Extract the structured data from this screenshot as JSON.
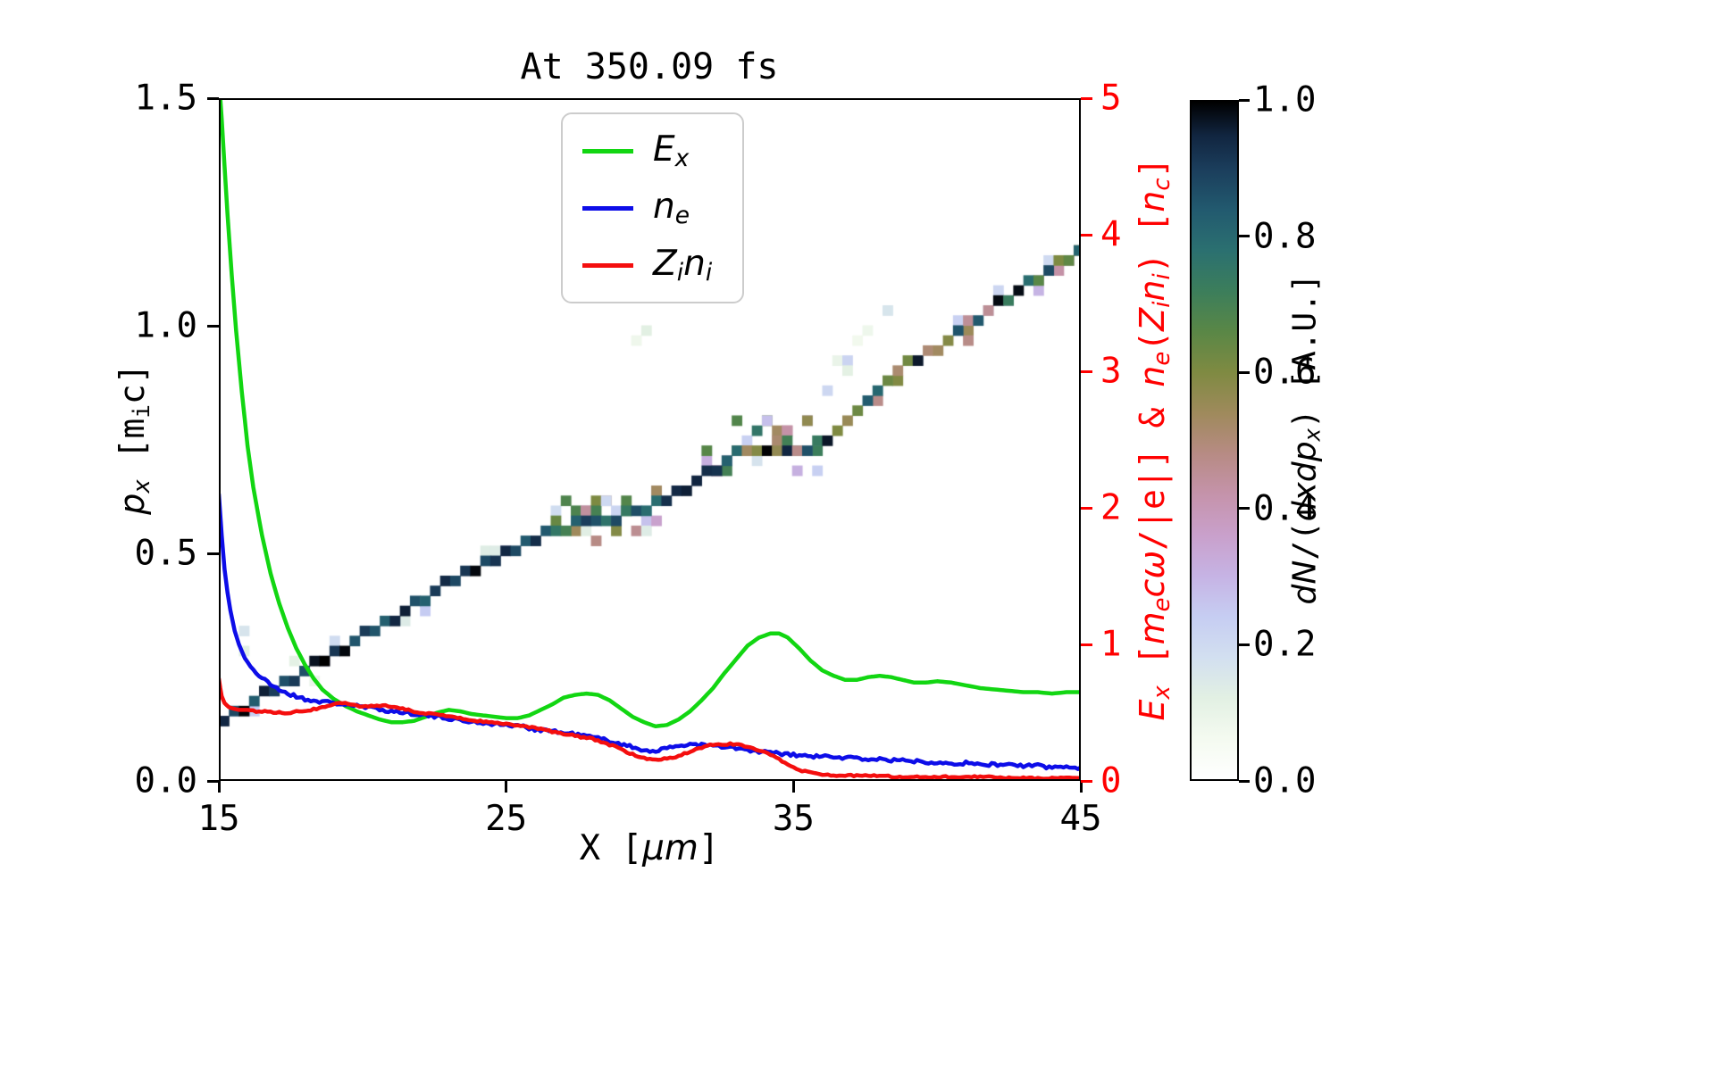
{
  "chart_data": {
    "type": "line+heatmap",
    "title": "At 350.09 fs",
    "xlabel": "X [μm]",
    "ylabel_left": "p_x [m_i c]",
    "ylabel_right": "E_x [m_e cω/|e|] & n_e(Z_i n_i) [n_c]",
    "colorbar_label": "dN/(dxdp_x) [A.U.]",
    "xlim": [
      15,
      45
    ],
    "ylim_left": [
      0.0,
      1.5
    ],
    "ylim_right": [
      0,
      5
    ],
    "grid": false,
    "legend_position": "upper center",
    "x_ticks": [
      {
        "v": 15,
        "label": "15"
      },
      {
        "v": 25,
        "label": "25"
      },
      {
        "v": 35,
        "label": "35"
      },
      {
        "v": 45,
        "label": "45"
      }
    ],
    "y_ticks_left": [
      {
        "v": 0.0,
        "label": "0.0"
      },
      {
        "v": 0.5,
        "label": "0.5"
      },
      {
        "v": 1.0,
        "label": "1.0"
      },
      {
        "v": 1.5,
        "label": "1.5"
      }
    ],
    "y_ticks_right": [
      {
        "v": 0,
        "label": "0"
      },
      {
        "v": 1,
        "label": "1"
      },
      {
        "v": 2,
        "label": "2"
      },
      {
        "v": 3,
        "label": "3"
      },
      {
        "v": 4,
        "label": "4"
      },
      {
        "v": 5,
        "label": "5"
      }
    ],
    "colorbar_ticks": [
      {
        "v": 0.0,
        "label": "0.0"
      },
      {
        "v": 0.2,
        "label": "0.2"
      },
      {
        "v": 0.4,
        "label": "0.4"
      },
      {
        "v": 0.6,
        "label": "0.6"
      },
      {
        "v": 0.8,
        "label": "0.8"
      },
      {
        "v": 1.0,
        "label": "1.0"
      }
    ],
    "colors": {
      "ex": "#12d612",
      "ne": "#0d0de8",
      "zini": "#f40e0e",
      "axis_red": "#ff0000",
      "frame": "#000000",
      "legend_edge": "#cccccc"
    },
    "noise_seed": 7,
    "labels": {
      "xlabel_parts": [
        {
          "t": "X ["
        },
        {
          "t": "μm",
          "i": 1
        },
        {
          "t": "]"
        }
      ],
      "ylabel_left_parts": [
        {
          "t": "p",
          "i": 1
        },
        {
          "t": "x",
          "i": 1,
          "s": 1
        },
        {
          "t": " [m"
        },
        {
          "t": "i",
          "s": 1
        },
        {
          "t": "c]"
        }
      ],
      "ylabel_right_parts": [
        {
          "t": "E",
          "i": 1
        },
        {
          "t": "x",
          "i": 1,
          "s": 1
        },
        {
          "t": " ["
        },
        {
          "t": "m",
          "i": 1
        },
        {
          "t": "e",
          "i": 1,
          "s": 1
        },
        {
          "t": "c",
          "i": 1
        },
        {
          "t": "ω",
          "i": 1
        },
        {
          "t": "/|e|] & "
        },
        {
          "t": "n",
          "i": 1
        },
        {
          "t": "e",
          "i": 1,
          "s": 1
        },
        {
          "t": "("
        },
        {
          "t": "Z",
          "i": 1
        },
        {
          "t": "i",
          "i": 1,
          "s": 1
        },
        {
          "t": "n",
          "i": 1
        },
        {
          "t": "i",
          "i": 1,
          "s": 1
        },
        {
          "t": ") ["
        },
        {
          "t": "n",
          "i": 1
        },
        {
          "t": "c",
          "i": 1,
          "s": 1
        },
        {
          "t": "]"
        }
      ],
      "colorbar_label_parts": [
        {
          "t": "dN",
          "i": 1
        },
        {
          "t": "/("
        },
        {
          "t": "dxdp",
          "i": 1
        },
        {
          "t": "x",
          "i": 1,
          "s": 1
        },
        {
          "t": ") [A.U.]"
        }
      ]
    },
    "legend": [
      {
        "label": "E_x",
        "color": "#12d612",
        "parts": [
          {
            "t": "E",
            "i": 1
          },
          {
            "t": "x",
            "i": 1,
            "s": 1
          }
        ]
      },
      {
        "label": "n_e",
        "color": "#0d0de8",
        "parts": [
          {
            "t": "n",
            "i": 1
          },
          {
            "t": "e",
            "i": 1,
            "s": 1
          }
        ]
      },
      {
        "label": "Z_i n_i",
        "color": "#f40e0e",
        "parts": [
          {
            "t": "Z",
            "i": 1
          },
          {
            "t": "i",
            "i": 1,
            "s": 1
          },
          {
            "t": "n",
            "i": 1
          },
          {
            "t": "i",
            "i": 1,
            "s": 1
          }
        ]
      }
    ],
    "series": [
      {
        "name": "E_x",
        "axis": "right",
        "color": "#12d612",
        "width": 4.5,
        "noise_amp": 0,
        "x": [
          15.0,
          15.05,
          15.1,
          15.2,
          15.3,
          15.45,
          15.6,
          15.8,
          16.0,
          16.2,
          16.5,
          16.8,
          17.1,
          17.4,
          17.7,
          18.0,
          18.3,
          18.6,
          19.0,
          19.4,
          19.8,
          20.2,
          20.6,
          21.0,
          21.4,
          21.8,
          22.2,
          22.6,
          23.0,
          23.4,
          23.8,
          24.2,
          24.6,
          25.0,
          25.4,
          25.8,
          26.2,
          26.6,
          27.0,
          27.4,
          27.8,
          28.2,
          28.6,
          29.0,
          29.4,
          29.8,
          30.2,
          30.6,
          31.0,
          31.4,
          31.8,
          32.2,
          32.6,
          33.0,
          33.4,
          33.8,
          34.2,
          34.5,
          34.8,
          35.2,
          35.6,
          36.0,
          36.4,
          36.8,
          37.2,
          37.6,
          38.0,
          38.4,
          38.8,
          39.2,
          39.6,
          40.0,
          40.5,
          41.0,
          41.5,
          42.0,
          42.5,
          43.0,
          43.5,
          44.0,
          44.5,
          45.0
        ],
        "y": [
          5.0,
          5.0,
          4.85,
          4.5,
          4.15,
          3.7,
          3.3,
          2.85,
          2.45,
          2.15,
          1.8,
          1.52,
          1.3,
          1.12,
          0.97,
          0.85,
          0.75,
          0.67,
          0.6,
          0.55,
          0.51,
          0.48,
          0.45,
          0.43,
          0.43,
          0.44,
          0.47,
          0.5,
          0.52,
          0.51,
          0.49,
          0.48,
          0.47,
          0.46,
          0.46,
          0.48,
          0.52,
          0.56,
          0.61,
          0.63,
          0.64,
          0.63,
          0.59,
          0.53,
          0.47,
          0.43,
          0.4,
          0.41,
          0.45,
          0.51,
          0.59,
          0.68,
          0.79,
          0.89,
          0.99,
          1.05,
          1.08,
          1.08,
          1.05,
          0.97,
          0.88,
          0.81,
          0.77,
          0.74,
          0.74,
          0.76,
          0.77,
          0.76,
          0.74,
          0.72,
          0.72,
          0.73,
          0.72,
          0.7,
          0.68,
          0.67,
          0.66,
          0.65,
          0.65,
          0.64,
          0.65,
          0.65
        ]
      },
      {
        "name": "n_e",
        "axis": "right",
        "color": "#0d0de8",
        "width": 4.5,
        "noise_amp": 0.013,
        "x": [
          15.0,
          15.05,
          15.1,
          15.2,
          15.3,
          15.4,
          15.55,
          15.7,
          15.9,
          16.1,
          16.4,
          16.7,
          17.0,
          17.4,
          17.8,
          18.2,
          18.6,
          19.0,
          19.5,
          20.0,
          20.5,
          21.0,
          21.5,
          22.0,
          22.5,
          23.0,
          23.5,
          24.0,
          24.5,
          25.0,
          25.5,
          26.0,
          26.5,
          27.0,
          27.5,
          28.0,
          28.5,
          29.0,
          29.5,
          30.0,
          30.5,
          31.0,
          31.5,
          32.0,
          32.5,
          33.0,
          33.5,
          34.0,
          34.5,
          35.0,
          35.5,
          36.0,
          36.5,
          37.0,
          37.5,
          38.0,
          38.5,
          39.0,
          39.5,
          40.0,
          40.5,
          41.0,
          41.5,
          42.0,
          42.5,
          43.0,
          43.5,
          44.0,
          44.5,
          45.0
        ],
        "y": [
          2.1,
          1.95,
          1.8,
          1.55,
          1.38,
          1.25,
          1.1,
          1.0,
          0.9,
          0.84,
          0.77,
          0.72,
          0.68,
          0.64,
          0.61,
          0.59,
          0.58,
          0.57,
          0.56,
          0.54,
          0.53,
          0.51,
          0.5,
          0.49,
          0.47,
          0.46,
          0.44,
          0.43,
          0.42,
          0.41,
          0.4,
          0.38,
          0.37,
          0.35,
          0.34,
          0.32,
          0.3,
          0.27,
          0.24,
          0.22,
          0.23,
          0.26,
          0.27,
          0.26,
          0.25,
          0.24,
          0.22,
          0.21,
          0.2,
          0.19,
          0.18,
          0.18,
          0.17,
          0.17,
          0.16,
          0.16,
          0.15,
          0.15,
          0.14,
          0.14,
          0.13,
          0.13,
          0.12,
          0.12,
          0.12,
          0.11,
          0.11,
          0.1,
          0.1,
          0.1
        ]
      },
      {
        "name": "Z_i n_i",
        "axis": "right",
        "color": "#f40e0e",
        "width": 4.5,
        "noise_amp": 0.006,
        "x": [
          15.0,
          15.05,
          15.1,
          15.2,
          15.35,
          15.5,
          15.7,
          16.0,
          16.3,
          16.6,
          17.0,
          17.4,
          17.8,
          18.2,
          18.6,
          19.0,
          19.3,
          19.6,
          20.0,
          20.4,
          20.8,
          21.2,
          21.6,
          22.0,
          22.4,
          22.8,
          23.2,
          23.6,
          24.0,
          24.4,
          24.8,
          25.2,
          25.6,
          26.0,
          26.4,
          26.8,
          27.2,
          27.6,
          28.0,
          28.4,
          28.8,
          29.2,
          29.6,
          30.0,
          30.4,
          30.8,
          31.2,
          31.6,
          32.0,
          32.4,
          32.8,
          33.2,
          33.6,
          34.0,
          34.4,
          34.8,
          35.2,
          35.6,
          36.0,
          36.5,
          37.0,
          37.5,
          38.0,
          38.5,
          39.0,
          39.5,
          40.0,
          40.5,
          41.0,
          41.5,
          42.0,
          42.5,
          43.0,
          43.5,
          44.0,
          44.5,
          45.0
        ],
        "y": [
          0.75,
          0.68,
          0.62,
          0.57,
          0.54,
          0.53,
          0.52,
          0.52,
          0.51,
          0.51,
          0.5,
          0.5,
          0.51,
          0.52,
          0.54,
          0.56,
          0.57,
          0.56,
          0.54,
          0.55,
          0.55,
          0.54,
          0.52,
          0.5,
          0.49,
          0.48,
          0.47,
          0.45,
          0.44,
          0.43,
          0.42,
          0.41,
          0.4,
          0.39,
          0.37,
          0.35,
          0.34,
          0.32,
          0.31,
          0.28,
          0.25,
          0.21,
          0.18,
          0.16,
          0.16,
          0.17,
          0.2,
          0.23,
          0.26,
          0.27,
          0.27,
          0.26,
          0.24,
          0.21,
          0.17,
          0.12,
          0.08,
          0.06,
          0.05,
          0.04,
          0.04,
          0.04,
          0.04,
          0.03,
          0.03,
          0.03,
          0.03,
          0.03,
          0.03,
          0.03,
          0.03,
          0.02,
          0.02,
          0.02,
          0.02,
          0.02,
          0.02
        ]
      }
    ],
    "heatmap": {
      "units": "p_x vs X phase space, value dN/(dxdp_x) in A.U.",
      "cell_dx": 0.35,
      "cell_dpx": 0.022,
      "ridge_v": [
        0.82,
        1.0
      ],
      "ridge": [
        [
          15,
          0.13
        ],
        [
          17,
          0.205
        ],
        [
          19,
          0.28
        ],
        [
          21,
          0.355
        ],
        [
          23,
          0.435
        ],
        [
          25,
          0.5
        ],
        [
          26,
          0.53
        ],
        [
          27,
          0.558
        ],
        [
          27.8,
          0.572
        ],
        [
          28.6,
          0.578
        ],
        [
          29.4,
          0.588
        ],
        [
          30,
          0.6
        ],
        [
          31,
          0.635
        ],
        [
          32,
          0.675
        ],
        [
          33,
          0.715
        ],
        [
          33.6,
          0.73
        ],
        [
          34.3,
          0.728
        ],
        [
          35,
          0.72
        ],
        [
          35.6,
          0.73
        ],
        [
          36.3,
          0.765
        ],
        [
          37,
          0.81
        ],
        [
          38,
          0.865
        ],
        [
          39,
          0.915
        ],
        [
          40,
          0.955
        ],
        [
          41,
          1.0
        ],
        [
          42,
          1.04
        ],
        [
          43,
          1.085
        ],
        [
          44,
          1.125
        ],
        [
          45,
          1.165
        ]
      ],
      "blobs": [
        {
          "x0": 15.2,
          "x1": 15.9,
          "dy0": -0.02,
          "dy1": 0.33,
          "v0": 0.06,
          "v1": 0.2,
          "p": 0.55,
          "n": 2
        },
        {
          "x0": 15.9,
          "x1": 25.5,
          "dy0": -0.035,
          "dy1": 0.035,
          "v0": 0.05,
          "v1": 0.3,
          "p": 0.38,
          "n": 1
        },
        {
          "x0": 26.5,
          "x1": 30.3,
          "dy0": -0.055,
          "dy1": 0.05,
          "v0": 0.12,
          "v1": 0.7,
          "p": 0.75,
          "n": 3,
          "main": 1
        },
        {
          "x0": 31.8,
          "x1": 35.9,
          "dy0": -0.05,
          "dy1": 0.075,
          "v0": 0.12,
          "v1": 0.78,
          "p": 0.85,
          "n": 3,
          "main": 1
        },
        {
          "x0": 35.9,
          "x1": 38.6,
          "dy0": 0.1,
          "dy1": 0.17,
          "v0": 0.05,
          "v1": 0.22,
          "p": 0.45,
          "n": 2
        },
        {
          "x0": 29.2,
          "x1": 31.2,
          "dy0": 0.33,
          "dy1": 0.41,
          "v0": 0.04,
          "v1": 0.12,
          "p": 0.35,
          "n": 1
        },
        {
          "x0": 36.2,
          "x1": 45.0,
          "dy0": -0.03,
          "dy1": 0.03,
          "v0": 0.15,
          "v1": 0.6,
          "p": 0.3,
          "n": 1,
          "main": 1
        },
        {
          "x0": 41.0,
          "x1": 45.0,
          "dy0": -0.04,
          "dy1": 0.05,
          "v0": 0.1,
          "v1": 0.5,
          "p": 0.5,
          "n": 2
        }
      ],
      "colormap": [
        [
          0.0,
          "#ffffff"
        ],
        [
          0.06,
          "#f4faf0"
        ],
        [
          0.12,
          "#e2f0e3"
        ],
        [
          0.18,
          "#d2dff0"
        ],
        [
          0.24,
          "#c6cdf2"
        ],
        [
          0.3,
          "#c6b3e4"
        ],
        [
          0.36,
          "#c9a0cb"
        ],
        [
          0.42,
          "#c593ab"
        ],
        [
          0.48,
          "#b78b84"
        ],
        [
          0.54,
          "#9f8a5c"
        ],
        [
          0.6,
          "#7f8a42"
        ],
        [
          0.66,
          "#5a8746"
        ],
        [
          0.72,
          "#3c7e5b"
        ],
        [
          0.78,
          "#2b7070"
        ],
        [
          0.84,
          "#225a6f"
        ],
        [
          0.9,
          "#1b3e5c"
        ],
        [
          0.95,
          "#112540"
        ],
        [
          1.0,
          "#000000"
        ]
      ]
    }
  }
}
